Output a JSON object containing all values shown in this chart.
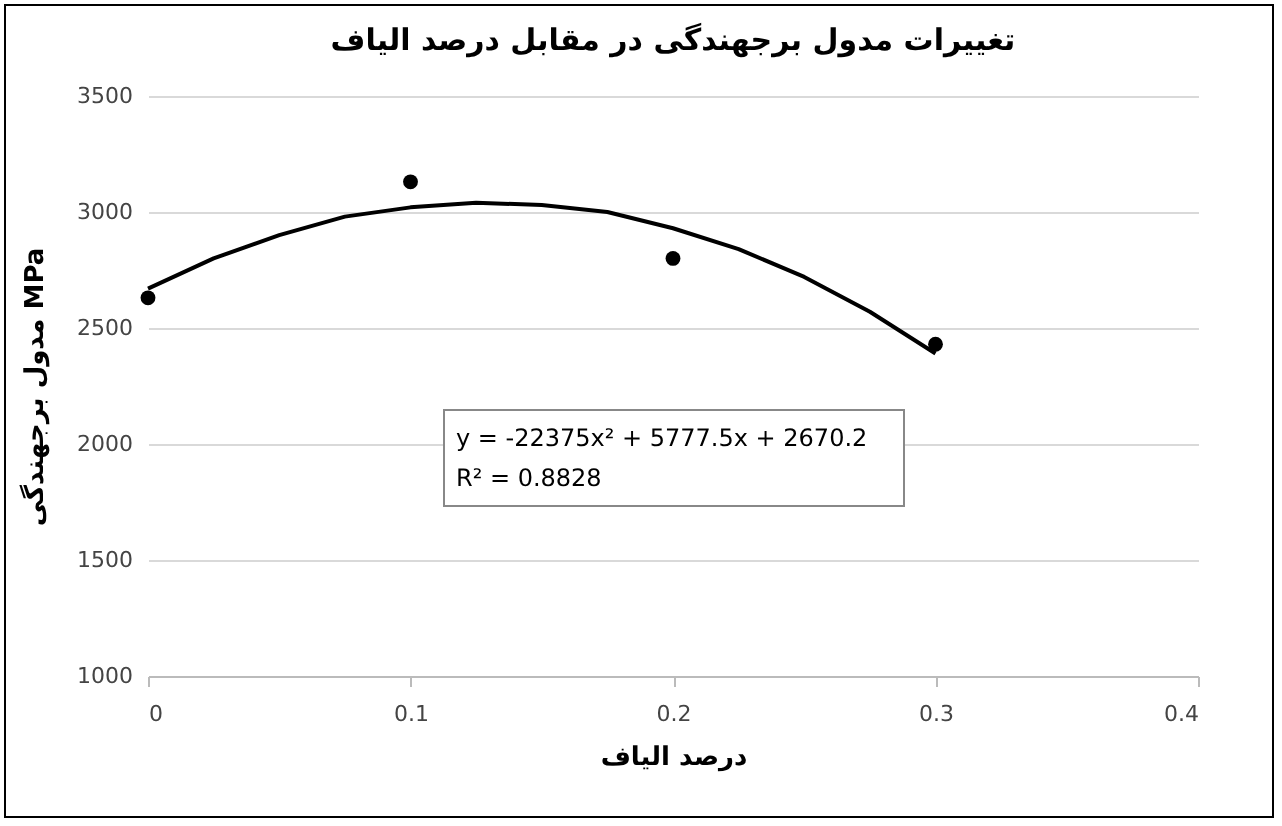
{
  "chart_data": {
    "type": "scatter",
    "title": "تغییرات مدول برجهندگی در مقابل درصد الیاف",
    "xlabel": "درصد الیاف",
    "ylabel": "مدول برجهندگی MPa",
    "xlim": [
      0,
      0.4
    ],
    "xticks": [
      0,
      0.1,
      0.2,
      0.3,
      0.4
    ],
    "ylim": [
      1000,
      3500
    ],
    "yticks": [
      1000,
      1500,
      2000,
      2500,
      3000,
      3500
    ],
    "grid": "y",
    "series": [
      {
        "color": "#000000",
        "marker": "circle",
        "x": [
          0,
          0.1,
          0.2,
          0.3
        ],
        "values": [
          2630,
          3130,
          2800,
          2430
        ]
      },
      {
        "type": "line",
        "color": "#000000",
        "line_style": "solid",
        "x": [
          0,
          0.025,
          0.05,
          0.075,
          0.1,
          0.125,
          0.15,
          0.175,
          0.2,
          0.225,
          0.25,
          0.275,
          0.3
        ],
        "values": [
          2670,
          2800,
          2900,
          2980,
          3020,
          3040,
          3030,
          3000,
          2930,
          2840,
          2720,
          2570,
          2390
        ]
      }
    ],
    "annotations": [
      "y = -22375x² + 5777.5x + 2670.2",
      "R² = 0.8828"
    ]
  }
}
